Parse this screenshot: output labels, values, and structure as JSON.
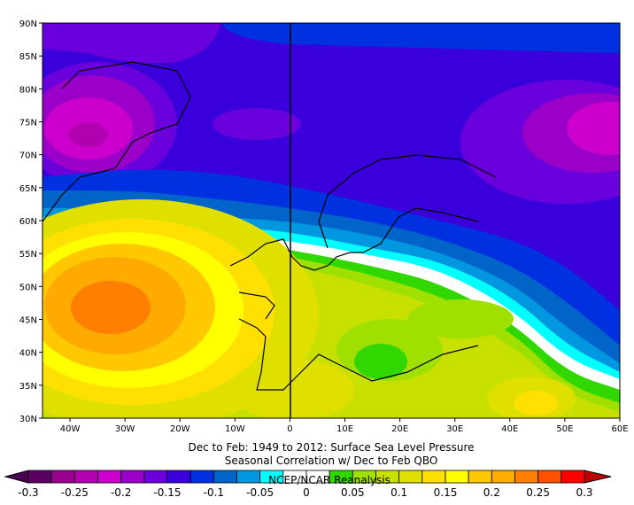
{
  "title_line1": "Dec to Feb: 1949 to 2012: Surface Sea Level Pressure",
  "title_line2": "Seasonal Correlation w/ Dec to Feb QBO",
  "credit": "NCEP/NCAR Reanalysis",
  "lat_labels": [
    "30N",
    "35N",
    "40N",
    "45N",
    "50N",
    "55N",
    "60N",
    "65N",
    "70N",
    "75N",
    "80N",
    "85N",
    "90N"
  ],
  "lon_labels": [
    "40W",
    "30W",
    "20W",
    "10W",
    "0",
    "10E",
    "20E",
    "30E",
    "40E",
    "50E",
    "60E"
  ],
  "colorbar": {
    "labels": [
      "-0.3",
      "-0.25",
      "-0.2",
      "-0.15",
      "-0.1",
      "-0.05",
      "0",
      "0.05",
      "0.1",
      "0.15",
      "0.2",
      "0.25",
      "0.3"
    ],
    "colors": [
      "#5a0060",
      "#9a0090",
      "#b000b0",
      "#cc00cc",
      "#9a00c8",
      "#6a00dc",
      "#3a00dc",
      "#0030e0",
      "#0064c8",
      "#0096e0",
      "#00ffff",
      "#ffffff",
      "#ffffff",
      "#30d800",
      "#a0e000",
      "#c8e000",
      "#e0e000",
      "#ffe000",
      "#ffff00",
      "#ffc800",
      "#ffaa00",
      "#ff8000",
      "#ff5000",
      "#ff0000"
    ],
    "low_extend_color": "#4a0050",
    "high_extend_color": "#c00000"
  }
}
